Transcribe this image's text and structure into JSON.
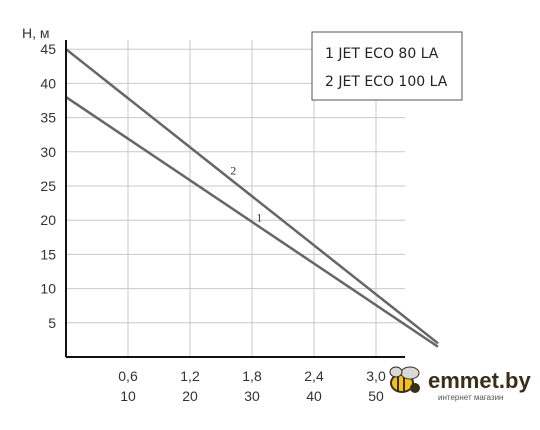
{
  "chart_data": {
    "type": "line",
    "ylabel": "H, м",
    "x_primary_ticks": [
      "0,6",
      "1,2",
      "1,8",
      "2,4",
      "3,0"
    ],
    "x_secondary_ticks": [
      "10",
      "20",
      "30",
      "40",
      "50"
    ],
    "y_ticks": [
      "5",
      "10",
      "15",
      "20",
      "25",
      "30",
      "35",
      "40",
      "45"
    ],
    "xlim": [
      0,
      3.6
    ],
    "ylim": [
      0,
      50
    ],
    "grid": true,
    "legend_position": "top-right",
    "legend": [
      "1 JET ECO 80 LA",
      "2 JET ECO 100 LA"
    ],
    "series": [
      {
        "name": "1",
        "label": "1",
        "color": "#666666",
        "x": [
          0,
          3.6
        ],
        "y": [
          38,
          1.5
        ]
      },
      {
        "name": "2",
        "label": "2",
        "color": "#666666",
        "x": [
          0,
          3.6
        ],
        "y": [
          45,
          2
        ]
      }
    ]
  },
  "watermark": {
    "brand": "emmet.by",
    "tagline": "интернет магазин",
    "icon": "bee-icon"
  }
}
